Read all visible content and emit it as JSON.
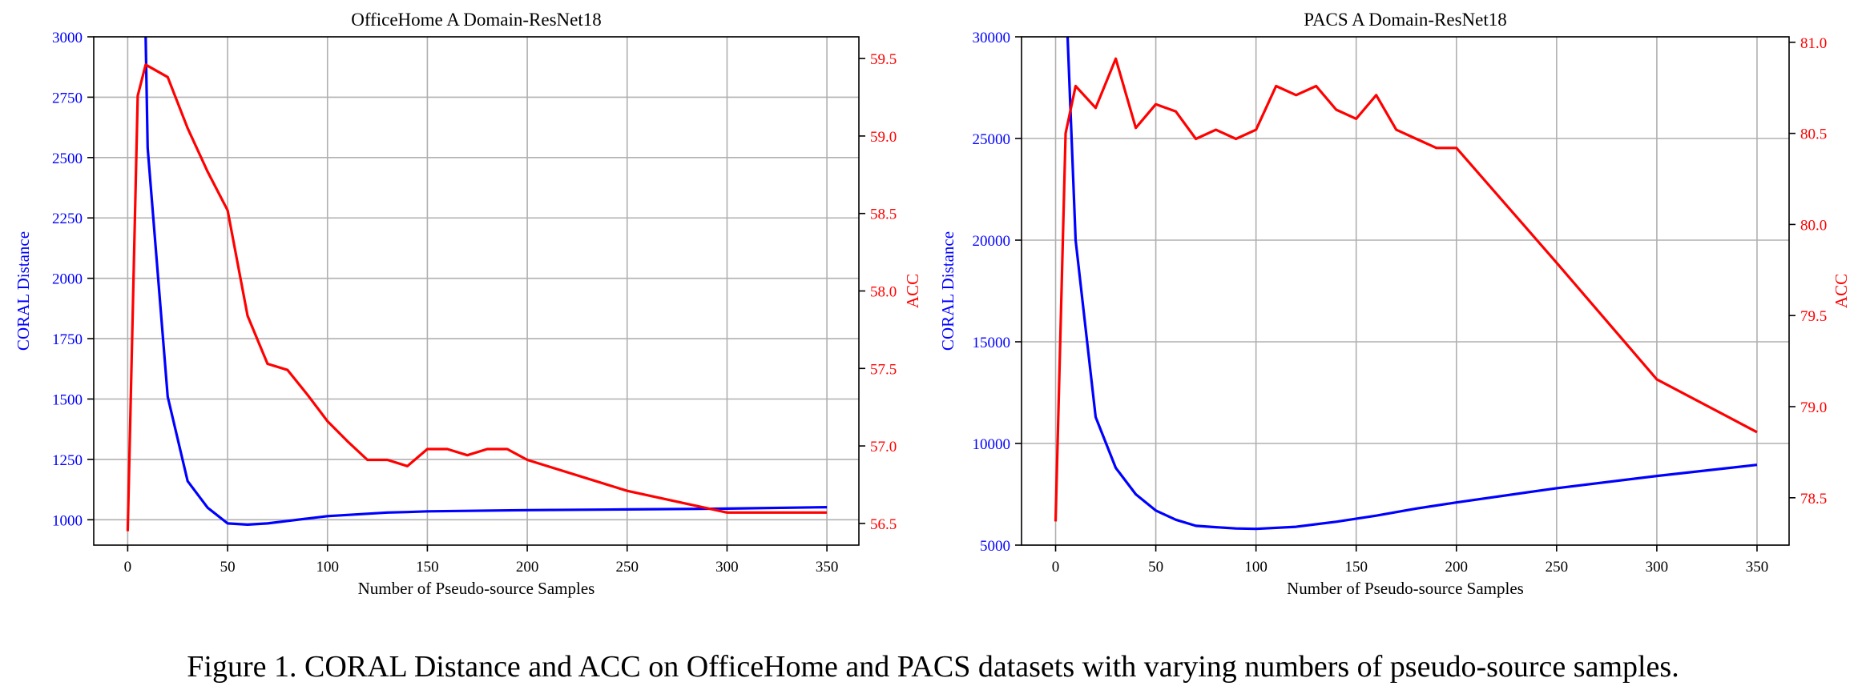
{
  "caption": "Figure 1. CORAL Distance and ACC on OfficeHome and PACS datasets with varying numbers of pseudo-source samples.",
  "colors": {
    "coral": "#0000ff",
    "acc": "#ff0000",
    "grid": "#b0b0b0",
    "axis": "#000000"
  },
  "chart_data": [
    {
      "type": "line",
      "title": "OfficeHome A Domain-ResNet18",
      "xlabel": "Number of Pseudo-source Samples",
      "ylabel_left": "CORAL Distance",
      "ylabel_right": "ACC",
      "xlim": [
        -17,
        366
      ],
      "xticks": [
        0,
        50,
        100,
        150,
        200,
        250,
        300,
        350
      ],
      "ylim_left": [
        895,
        3000
      ],
      "yticks_left": [
        1000,
        1250,
        1500,
        1750,
        2000,
        2250,
        2500,
        2750,
        3000
      ],
      "ylim_right": [
        56.36,
        59.64
      ],
      "yticks_right": [
        "56.5",
        "57.0",
        "57.5",
        "58.0",
        "58.5",
        "59.0",
        "59.5"
      ],
      "grid": true,
      "series": [
        {
          "axis": "left",
          "color": "#0000ff",
          "x": [
            9,
            10,
            20,
            30,
            40,
            50,
            60,
            70,
            80,
            90,
            100,
            110,
            120,
            130,
            140,
            150,
            200,
            250,
            300,
            350
          ],
          "y": [
            3000,
            2540,
            1510,
            1160,
            1050,
            985,
            980,
            985,
            995,
            1005,
            1015,
            1020,
            1025,
            1030,
            1032,
            1035,
            1040,
            1043,
            1046,
            1052
          ]
        },
        {
          "axis": "right",
          "color": "#ff0000",
          "x": [
            0,
            5,
            9,
            20,
            30,
            40,
            50,
            60,
            70,
            80,
            90,
            100,
            110,
            120,
            130,
            140,
            150,
            160,
            170,
            180,
            190,
            200,
            250,
            300,
            350
          ],
          "y": [
            56.45,
            59.26,
            59.46,
            59.38,
            59.05,
            58.77,
            58.52,
            57.84,
            57.53,
            57.49,
            57.33,
            57.16,
            57.03,
            56.91,
            56.91,
            56.87,
            56.98,
            56.98,
            56.94,
            56.98,
            56.98,
            56.91,
            56.71,
            56.57,
            56.57
          ]
        }
      ]
    },
    {
      "type": "line",
      "title": "PACS A Domain-ResNet18",
      "xlabel": "Number of Pseudo-source Samples",
      "ylabel_left": "CORAL Distance",
      "ylabel_right": "ACC",
      "xlim": [
        -17,
        366
      ],
      "xticks": [
        0,
        50,
        100,
        150,
        200,
        250,
        300,
        350
      ],
      "ylim_left": [
        5000,
        30000
      ],
      "yticks_left": [
        5000,
        10000,
        15000,
        20000,
        25000,
        30000
      ],
      "ylim_right": [
        78.24,
        81.03
      ],
      "yticks_right": [
        "78.5",
        "79.0",
        "79.5",
        "80.0",
        "80.5",
        "81.0"
      ],
      "grid": true,
      "series": [
        {
          "axis": "left",
          "color": "#0000ff",
          "x": [
            6,
            10,
            20,
            30,
            40,
            50,
            60,
            70,
            80,
            90,
            100,
            120,
            140,
            160,
            180,
            200,
            250,
            300,
            350
          ],
          "y": [
            30000,
            20000,
            11300,
            8800,
            7500,
            6700,
            6250,
            5950,
            5880,
            5820,
            5800,
            5900,
            6150,
            6450,
            6800,
            7100,
            7800,
            8400,
            8950
          ]
        },
        {
          "axis": "right",
          "color": "#ff0000",
          "x": [
            0,
            5,
            10,
            20,
            30,
            40,
            50,
            60,
            70,
            80,
            90,
            100,
            110,
            120,
            130,
            140,
            150,
            160,
            170,
            180,
            190,
            200,
            250,
            300,
            350
          ],
          "y": [
            78.37,
            80.5,
            80.76,
            80.64,
            80.91,
            80.53,
            80.66,
            80.62,
            80.47,
            80.52,
            80.47,
            80.52,
            80.76,
            80.71,
            80.76,
            80.63,
            80.58,
            80.71,
            80.52,
            80.47,
            80.42,
            80.42,
            79.79,
            79.15,
            78.86
          ]
        }
      ]
    }
  ]
}
